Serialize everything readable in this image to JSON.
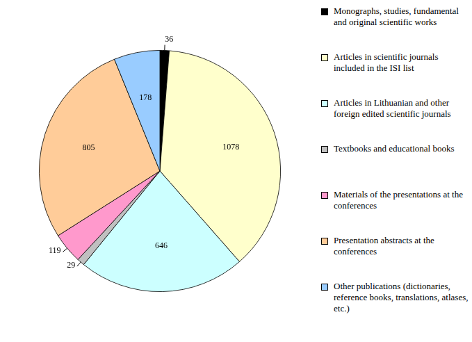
{
  "chart_data": {
    "type": "pie",
    "categories": [
      "Monographs, studies, fundamental and original scientific works",
      "Articles in scientific journals included in the ISI list",
      "Articles in Lithuanian and other foreign edited scientific journals",
      "Textbooks and educational books",
      "Materials of the presentations at the conferences",
      "Presentation abstracts at the conferences",
      "Other publications (dictionaries, reference books, translations, atlases, etc.)"
    ],
    "values": [
      36,
      1078,
      646,
      29,
      119,
      805,
      178
    ],
    "colors": [
      "#000000",
      "#ffffcc",
      "#ccffff",
      "#c0c0c0",
      "#ff99cc",
      "#ffcc99",
      "#99ccff"
    ],
    "data_labels": true,
    "legend": "right"
  }
}
